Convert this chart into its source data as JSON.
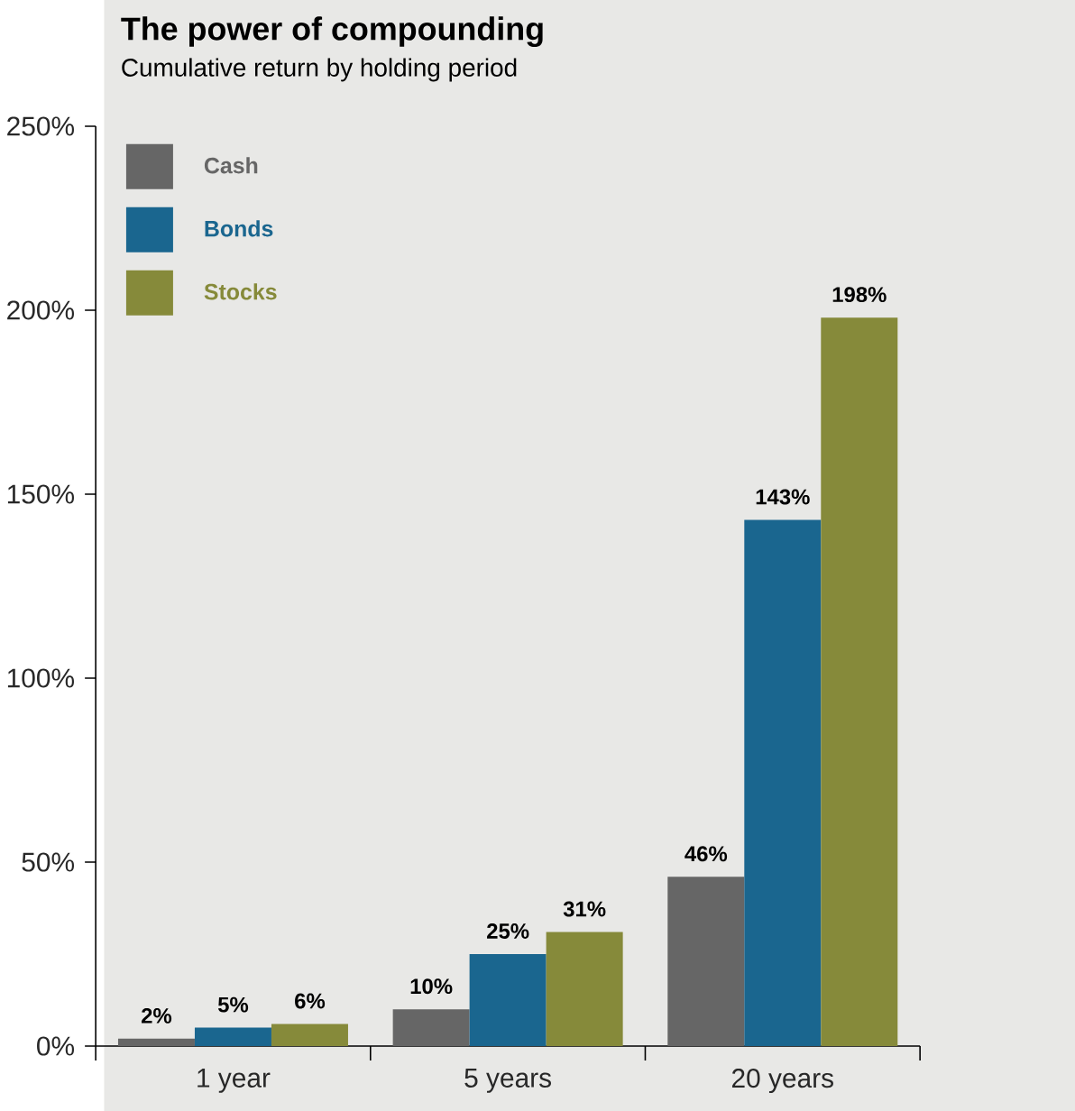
{
  "chart_data": {
    "type": "bar",
    "title": "The power of compounding",
    "subtitle": "Cumulative return by holding period",
    "categories": [
      "1 year",
      "5 years",
      "20 years"
    ],
    "series": [
      {
        "name": "Cash",
        "color": "#666666",
        "values": [
          2,
          10,
          46
        ],
        "value_labels": [
          "2%",
          "10%",
          "46%"
        ]
      },
      {
        "name": "Bonds",
        "color": "#1a668f",
        "values": [
          5,
          25,
          143
        ],
        "value_labels": [
          "5%",
          "25%",
          "143%"
        ]
      },
      {
        "name": "Stocks",
        "color": "#868a3a",
        "values": [
          6,
          31,
          198
        ],
        "value_labels": [
          "6%",
          "31%",
          "198%"
        ]
      }
    ],
    "ylim": [
      0,
      250
    ],
    "yticks": [
      {
        "value": 0,
        "label": "0%"
      },
      {
        "value": 50,
        "label": "50%"
      },
      {
        "value": 100,
        "label": "100%"
      },
      {
        "value": 150,
        "label": "150%"
      },
      {
        "value": 200,
        "label": "200%"
      },
      {
        "value": 250,
        "label": "250%"
      }
    ],
    "grid": false,
    "legend": "top left"
  }
}
